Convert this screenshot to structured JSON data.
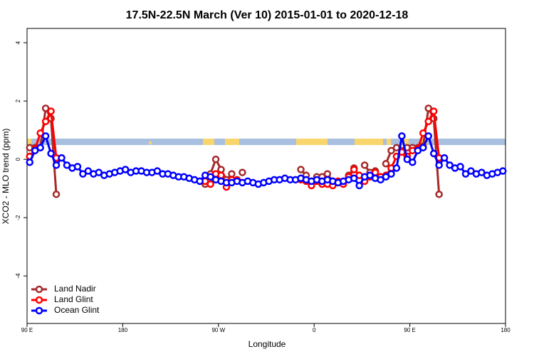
{
  "chart_data": {
    "type": "line",
    "title": "17.5N-22.5N March (Ver 10)   2015-01-01 to 2020-12-18",
    "x_label": "Longitude",
    "y_label": "XCO2 - MLO trend (ppm)",
    "xlim": [
      90,
      540
    ],
    "ylim": [
      -5.63,
      4.49
    ],
    "xticks": [
      {
        "value": 90,
        "label": "90 E"
      },
      180,
      {
        "value": 270,
        "label": "90 W"
      },
      {
        "value": 360,
        "label": "0"
      },
      {
        "value": 450,
        "label": "90 E"
      },
      {
        "value": 540,
        "label": "180"
      }
    ],
    "yticks": [
      -4,
      -2,
      0,
      2,
      4
    ],
    "legend": "bottom-left",
    "x": [
      92.5,
      97.5,
      102.5,
      107.5,
      112.5,
      117.5,
      122.5,
      127.5,
      132.5,
      137.5,
      142.5,
      147.5,
      152.5,
      157.5,
      162.5,
      167.5,
      172.5,
      177.5,
      182.5,
      187.5,
      192.5,
      197.5,
      202.5,
      207.5,
      212.5,
      217.5,
      222.5,
      227.5,
      232.5,
      237.5,
      242.5,
      247.5,
      252.5,
      257.5,
      262.5,
      267.5,
      272.5,
      277.5,
      282.5,
      287.5,
      292.5,
      297.5,
      302.5,
      307.5,
      312.5,
      317.5,
      322.5,
      327.5,
      332.5,
      337.5,
      342.5,
      347.5,
      352.5,
      357.5,
      362.5,
      367.5,
      372.5,
      377.5,
      382.5,
      387.5,
      392.5,
      397.5,
      402.5,
      407.5,
      412.5,
      417.5,
      422.5,
      427.5,
      432.5,
      437.5,
      442.5,
      447.5,
      452.5,
      457.5,
      462.5,
      467.5,
      472.5,
      477.5,
      482.5,
      487.5,
      492.5,
      497.5,
      502.5,
      507.5,
      512.5,
      517.5,
      522.5,
      527.5,
      532.5,
      537.5
    ],
    "series": [
      {
        "name": "Land Nadir",
        "color": "#a52a2a",
        "values": [
          0.4,
          0.4,
          0.4,
          1.75,
          1.4,
          -1.2,
          null,
          null,
          null,
          null,
          null,
          null,
          null,
          null,
          null,
          null,
          null,
          null,
          null,
          null,
          null,
          null,
          null,
          null,
          null,
          null,
          null,
          null,
          null,
          null,
          null,
          null,
          null,
          -0.85,
          -0.5,
          0,
          -0.35,
          -0.7,
          -0.5,
          null,
          -0.45,
          null,
          null,
          null,
          null,
          null,
          null,
          null,
          null,
          null,
          null,
          -0.35,
          -0.55,
          null,
          -0.6,
          -0.6,
          -0.5,
          -0.75,
          null,
          null,
          -0.55,
          -0.3,
          null,
          -0.2,
          -0.45,
          -0.4,
          null,
          -0.15,
          0.3,
          0.4,
          0.3,
          0.4,
          0.4,
          0.4,
          0.45,
          1.75,
          1.4,
          -1.2,
          null,
          null,
          null,
          null,
          null,
          null,
          null,
          null,
          null,
          null,
          null,
          null
        ]
      },
      {
        "name": "Land Glint",
        "color": "#ff0000",
        "values": [
          0.1,
          0.35,
          0.9,
          1.3,
          1.65,
          0.05,
          null,
          null,
          null,
          null,
          null,
          null,
          null,
          null,
          null,
          null,
          null,
          null,
          null,
          null,
          null,
          null,
          null,
          null,
          null,
          null,
          null,
          null,
          null,
          null,
          null,
          null,
          null,
          -0.75,
          -0.85,
          -0.5,
          -0.55,
          -0.95,
          -0.7,
          -0.7,
          null,
          null,
          null,
          null,
          null,
          null,
          null,
          null,
          null,
          null,
          null,
          -0.7,
          -0.75,
          -0.9,
          -0.75,
          -0.85,
          -0.85,
          -0.9,
          -0.75,
          -0.85,
          -0.6,
          -0.35,
          -0.55,
          -0.75,
          -0.6,
          -0.45,
          -0.6,
          -0.55,
          -0.3,
          0.1,
          0.25,
          0.1,
          0.3,
          0.35,
          0.9,
          1.3,
          1.65,
          0.05,
          null,
          null,
          null,
          null,
          null,
          null,
          null,
          null,
          null,
          null,
          null,
          null
        ]
      },
      {
        "name": "Ocean Glint",
        "color": "#0000ff",
        "values": [
          -0.1,
          0.3,
          0.4,
          0.8,
          0.2,
          -0.2,
          0.05,
          -0.2,
          -0.3,
          -0.25,
          -0.5,
          -0.4,
          -0.5,
          -0.45,
          -0.55,
          -0.5,
          -0.45,
          -0.4,
          -0.35,
          -0.45,
          -0.4,
          -0.4,
          -0.45,
          -0.45,
          -0.4,
          -0.5,
          -0.5,
          -0.55,
          -0.6,
          -0.6,
          -0.65,
          -0.7,
          -0.75,
          -0.55,
          -0.6,
          -0.7,
          -0.75,
          -0.8,
          -0.8,
          -0.75,
          -0.8,
          -0.75,
          -0.8,
          -0.85,
          -0.8,
          -0.75,
          -0.7,
          -0.7,
          -0.65,
          -0.7,
          -0.7,
          -0.65,
          -0.7,
          -0.75,
          -0.7,
          -0.75,
          -0.7,
          -0.75,
          -0.8,
          -0.75,
          -0.7,
          -0.65,
          -0.9,
          -0.6,
          -0.55,
          -0.65,
          -0.7,
          -0.6,
          -0.5,
          -0.3,
          0.8,
          0,
          -0.1,
          0.3,
          0.4,
          0.8,
          0.2,
          -0.2,
          0.05,
          -0.2,
          -0.3,
          -0.25,
          -0.5,
          -0.4,
          -0.5,
          -0.45,
          -0.55,
          -0.5,
          -0.45,
          -0.4
        ]
      }
    ]
  }
}
